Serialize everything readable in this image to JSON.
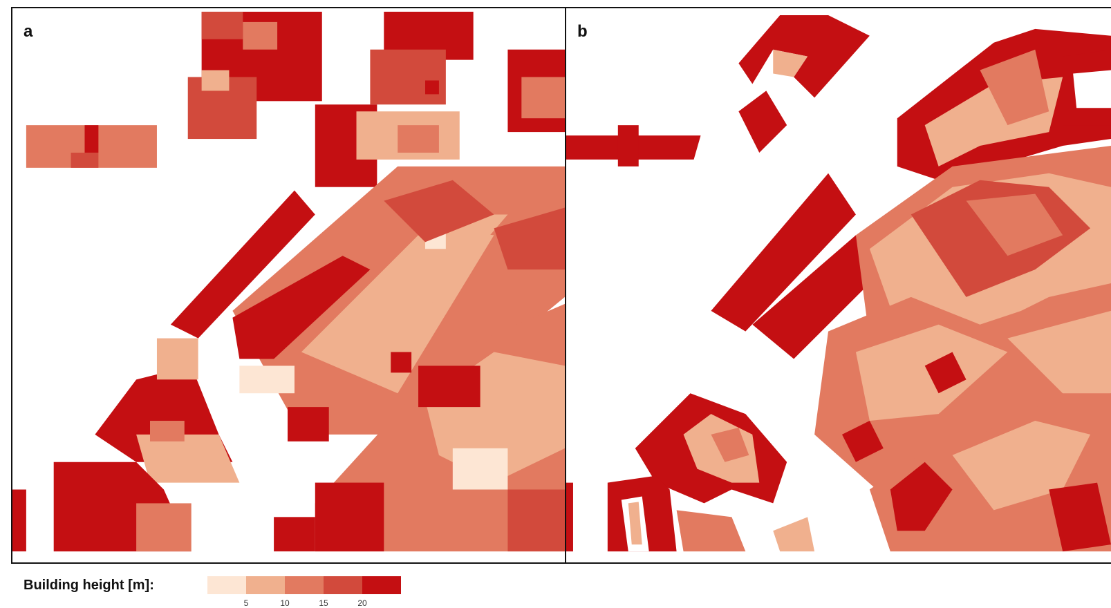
{
  "panels": [
    {
      "label": "a"
    },
    {
      "label": "b"
    }
  ],
  "legend": {
    "title": "Building height [m]:",
    "colors": [
      "#fde6d4",
      "#f0b08e",
      "#e27a60",
      "#d24a3c",
      "#c40f12"
    ],
    "ticks": [
      "5",
      "10",
      "15",
      "20"
    ]
  },
  "map_data": {
    "type": "choropleth",
    "variable": "Building height [m]",
    "height_classes": [
      "<5",
      "5-10",
      "10-15",
      "15-20",
      ">20"
    ]
  }
}
